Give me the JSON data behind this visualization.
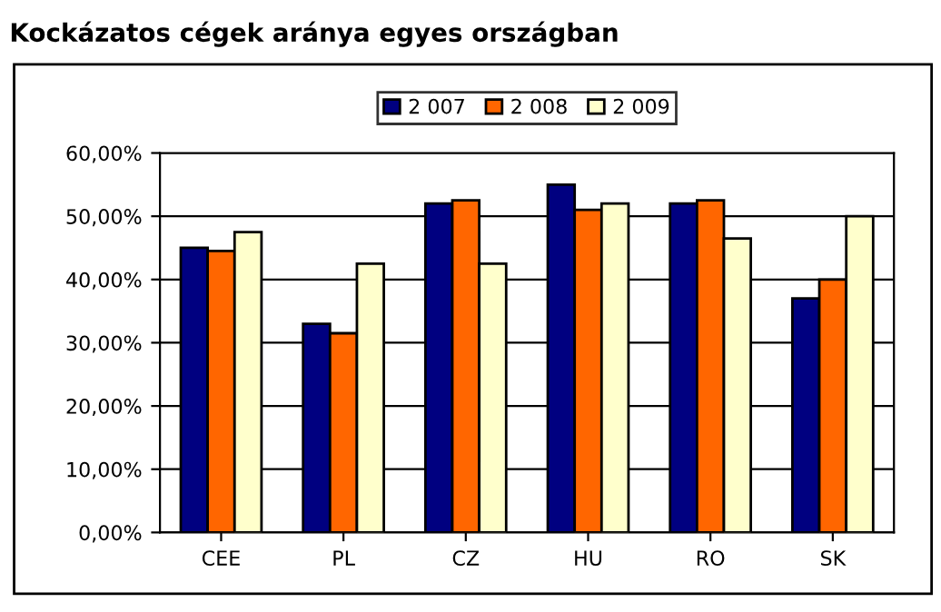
{
  "chart_data": {
    "type": "bar",
    "title": "Kockázatos cégek aránya egyes országban",
    "categories": [
      "CEE",
      "PL",
      "CZ",
      "HU",
      "RO",
      "SK"
    ],
    "series": [
      {
        "name": "2 007",
        "color": "#000080",
        "values": [
          45,
          33,
          52,
          55,
          52,
          37
        ]
      },
      {
        "name": "2 008",
        "color": "#ff6600",
        "values": [
          44.5,
          31.5,
          52.5,
          51,
          52.5,
          40
        ]
      },
      {
        "name": "2 009",
        "color": "#ffffcc",
        "values": [
          47.5,
          42.5,
          42.5,
          52,
          46.5,
          50
        ]
      }
    ],
    "ylim": [
      0,
      60
    ],
    "yticks": [
      {
        "value": 0,
        "label": "0,00%"
      },
      {
        "value": 10,
        "label": "10,00%"
      },
      {
        "value": 20,
        "label": "20,00%"
      },
      {
        "value": 30,
        "label": "30,00%"
      },
      {
        "value": 40,
        "label": "40,00%"
      },
      {
        "value": 50,
        "label": "50,00%"
      },
      {
        "value": 60,
        "label": "60,00%"
      }
    ],
    "grid": "y",
    "legend": "top"
  }
}
